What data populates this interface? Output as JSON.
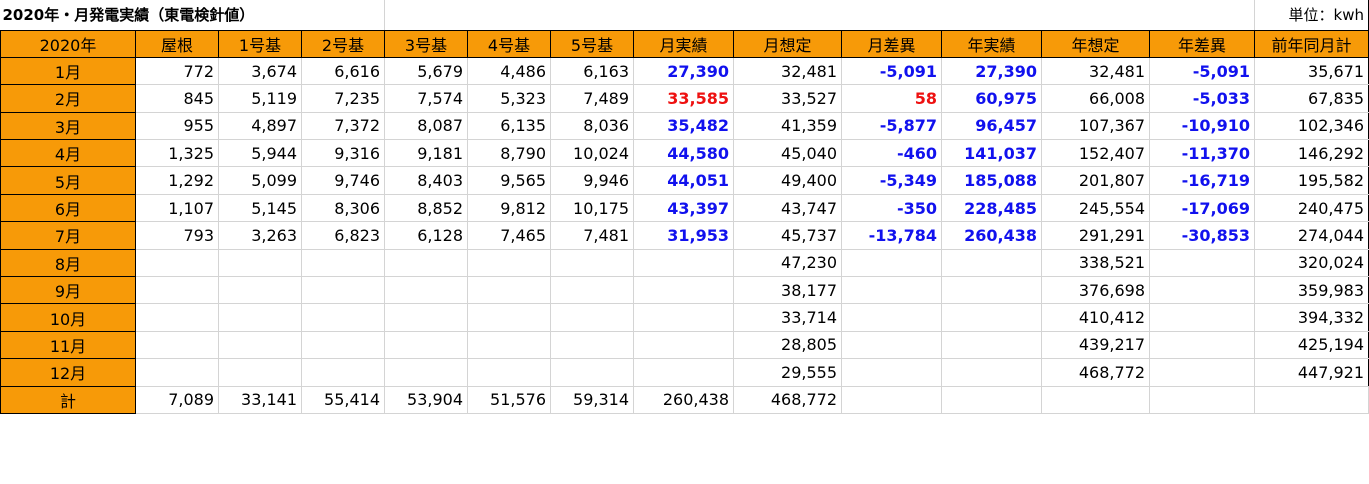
{
  "title": "2020年・月発電実績（東電検針値）",
  "unit_label": "単位：kwh",
  "headers": [
    "2020年",
    "屋根",
    "1号基",
    "2号基",
    "3号基",
    "4号基",
    "5号基",
    "月実績",
    "月想定",
    "月差異",
    "年実績",
    "年想定",
    "年差異",
    "前年同月計"
  ],
  "rows": [
    {
      "month": "1月",
      "cells": [
        "772",
        "3,674",
        "6,616",
        "5,679",
        "4,486",
        "6,163",
        "27,390",
        "32,481",
        "-5,091",
        "27,390",
        "32,481",
        "-5,091",
        "35,671"
      ],
      "styles": [
        "",
        "",
        "",
        "",
        "",
        "",
        "blue",
        "",
        "blue",
        "blue",
        "",
        "blue",
        ""
      ]
    },
    {
      "month": "2月",
      "cells": [
        "845",
        "5,119",
        "7,235",
        "7,574",
        "5,323",
        "7,489",
        "33,585",
        "33,527",
        "58",
        "60,975",
        "66,008",
        "-5,033",
        "67,835"
      ],
      "styles": [
        "",
        "",
        "",
        "",
        "",
        "",
        "red",
        "",
        "red",
        "blue",
        "",
        "blue",
        ""
      ]
    },
    {
      "month": "3月",
      "cells": [
        "955",
        "4,897",
        "7,372",
        "8,087",
        "6,135",
        "8,036",
        "35,482",
        "41,359",
        "-5,877",
        "96,457",
        "107,367",
        "-10,910",
        "102,346"
      ],
      "styles": [
        "",
        "",
        "",
        "",
        "",
        "",
        "blue",
        "",
        "blue",
        "blue",
        "",
        "blue",
        ""
      ]
    },
    {
      "month": "4月",
      "cells": [
        "1,325",
        "5,944",
        "9,316",
        "9,181",
        "8,790",
        "10,024",
        "44,580",
        "45,040",
        "-460",
        "141,037",
        "152,407",
        "-11,370",
        "146,292"
      ],
      "styles": [
        "",
        "",
        "",
        "",
        "",
        "",
        "blue",
        "",
        "blue",
        "blue",
        "",
        "blue",
        ""
      ]
    },
    {
      "month": "5月",
      "cells": [
        "1,292",
        "5,099",
        "9,746",
        "8,403",
        "9,565",
        "9,946",
        "44,051",
        "49,400",
        "-5,349",
        "185,088",
        "201,807",
        "-16,719",
        "195,582"
      ],
      "styles": [
        "",
        "",
        "",
        "",
        "",
        "",
        "blue",
        "",
        "blue",
        "blue",
        "",
        "blue",
        ""
      ]
    },
    {
      "month": "6月",
      "cells": [
        "1,107",
        "5,145",
        "8,306",
        "8,852",
        "9,812",
        "10,175",
        "43,397",
        "43,747",
        "-350",
        "228,485",
        "245,554",
        "-17,069",
        "240,475"
      ],
      "styles": [
        "",
        "",
        "",
        "",
        "",
        "",
        "blue",
        "",
        "blue",
        "blue",
        "",
        "blue",
        ""
      ]
    },
    {
      "month": "7月",
      "cells": [
        "793",
        "3,263",
        "6,823",
        "6,128",
        "7,465",
        "7,481",
        "31,953",
        "45,737",
        "-13,784",
        "260,438",
        "291,291",
        "-30,853",
        "274,044"
      ],
      "styles": [
        "",
        "",
        "",
        "",
        "",
        "",
        "blue",
        "",
        "blue",
        "blue",
        "",
        "blue",
        ""
      ]
    },
    {
      "month": "8月",
      "cells": [
        "",
        "",
        "",
        "",
        "",
        "",
        "",
        "47,230",
        "",
        "",
        "338,521",
        "",
        "320,024"
      ],
      "styles": []
    },
    {
      "month": "9月",
      "cells": [
        "",
        "",
        "",
        "",
        "",
        "",
        "",
        "38,177",
        "",
        "",
        "376,698",
        "",
        "359,983"
      ],
      "styles": []
    },
    {
      "month": "10月",
      "cells": [
        "",
        "",
        "",
        "",
        "",
        "",
        "",
        "33,714",
        "",
        "",
        "410,412",
        "",
        "394,332"
      ],
      "styles": []
    },
    {
      "month": "11月",
      "cells": [
        "",
        "",
        "",
        "",
        "",
        "",
        "",
        "28,805",
        "",
        "",
        "439,217",
        "",
        "425,194"
      ],
      "styles": []
    },
    {
      "month": "12月",
      "cells": [
        "",
        "",
        "",
        "",
        "",
        "",
        "",
        "29,555",
        "",
        "",
        "468,772",
        "",
        "447,921"
      ],
      "styles": []
    }
  ],
  "total": {
    "month": "計",
    "cells": [
      "7,089",
      "33,141",
      "55,414",
      "53,904",
      "51,576",
      "59,314",
      "260,438",
      "468,772",
      "",
      "",
      "",
      "",
      ""
    ]
  },
  "colors": {
    "header_bg": "#f79a08",
    "blue": "#1111ee",
    "red": "#ee1111"
  }
}
